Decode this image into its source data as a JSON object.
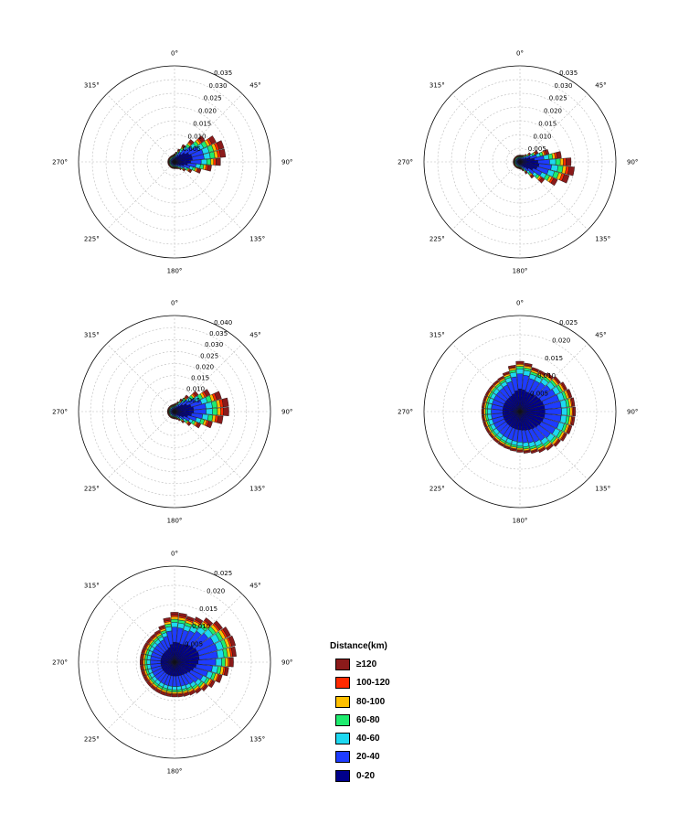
{
  "legend": {
    "title": "Distance(km)",
    "items": [
      {
        "label": "≥120",
        "color": "#8b1a1a"
      },
      {
        "label": "100-120",
        "color": "#ff2a00"
      },
      {
        "label": "80-100",
        "color": "#ffc000"
      },
      {
        "label": "60-80",
        "color": "#1eeb6e"
      },
      {
        "label": "40-60",
        "color": "#1ed8f0"
      },
      {
        "label": "20-40",
        "color": "#1e3cff"
      },
      {
        "label": "0-20",
        "color": "#00008b"
      }
    ]
  },
  "direction_labels": [
    "0°",
    "45°",
    "90°",
    "135°",
    "180°",
    "225°",
    "270°",
    "315°"
  ],
  "chart_data": [
    {
      "type": "polar-bar",
      "rmax": 0.035,
      "rticks": [
        0.005,
        0.01,
        0.015,
        0.02,
        0.025,
        0.03,
        0.035
      ],
      "rtick_labels": [
        "0.005",
        "0.010",
        "0.015",
        "0.020",
        "0.025",
        "0.030",
        "0.035"
      ],
      "sectors": 36,
      "profile": {
        "base": 0.0025,
        "peaks": [
          {
            "angle": 75,
            "amp": 0.0165,
            "width": 28
          }
        ],
        "shares": [
          0.35,
          0.23,
          0.12,
          0.09,
          0.06,
          0.05,
          0.1
        ]
      }
    },
    {
      "type": "polar-bar",
      "rmax": 0.035,
      "rticks": [
        0.005,
        0.01,
        0.015,
        0.02,
        0.025,
        0.03,
        0.035
      ],
      "rtick_labels": [
        "0.005",
        "0.010",
        "0.015",
        "0.020",
        "0.025",
        "0.030",
        "0.035"
      ],
      "sectors": 36,
      "profile": {
        "base": 0.0025,
        "peaks": [
          {
            "angle": 100,
            "amp": 0.0175,
            "width": 25
          }
        ],
        "shares": [
          0.35,
          0.23,
          0.12,
          0.09,
          0.06,
          0.05,
          0.1
        ]
      }
    },
    {
      "type": "polar-bar",
      "rmax": 0.04,
      "rticks": [
        0.005,
        0.01,
        0.015,
        0.02,
        0.025,
        0.03,
        0.035,
        0.04
      ],
      "rtick_labels": [
        "0.005",
        "0.010",
        "0.015",
        "0.020",
        "0.025",
        "0.030",
        "0.035",
        "0.040"
      ],
      "sectors": 36,
      "profile": {
        "base": 0.003,
        "peaks": [
          {
            "angle": 85,
            "amp": 0.02,
            "width": 28
          }
        ],
        "shares": [
          0.35,
          0.23,
          0.12,
          0.09,
          0.06,
          0.05,
          0.1
        ]
      }
    },
    {
      "type": "polar-bar",
      "rmax": 0.025,
      "rticks": [
        0.005,
        0.01,
        0.015,
        0.02,
        0.025
      ],
      "rtick_labels": [
        "0.005",
        "0.010",
        "0.015",
        "0.020",
        "0.025"
      ],
      "sectors": 36,
      "profile": {
        "base": 0.01,
        "peaks": [
          {
            "angle": 90,
            "amp": 0.0045,
            "width": 45
          },
          {
            "angle": 0,
            "amp": 0.0025,
            "width": 12
          }
        ],
        "shares": [
          0.45,
          0.3,
          0.1,
          0.05,
          0.04,
          0.02,
          0.04
        ]
      }
    },
    {
      "type": "polar-bar",
      "rmax": 0.025,
      "rticks": [
        0.005,
        0.01,
        0.015,
        0.02,
        0.025
      ],
      "rtick_labels": [
        "0.005",
        "0.010",
        "0.015",
        "0.020",
        "0.025"
      ],
      "sectors": 36,
      "profile": {
        "base": 0.009,
        "peaks": [
          {
            "angle": 70,
            "amp": 0.0075,
            "width": 35
          },
          {
            "angle": 0,
            "amp": 0.003,
            "width": 12
          }
        ],
        "shares": [
          0.4,
          0.3,
          0.1,
          0.06,
          0.05,
          0.03,
          0.06
        ]
      }
    }
  ]
}
